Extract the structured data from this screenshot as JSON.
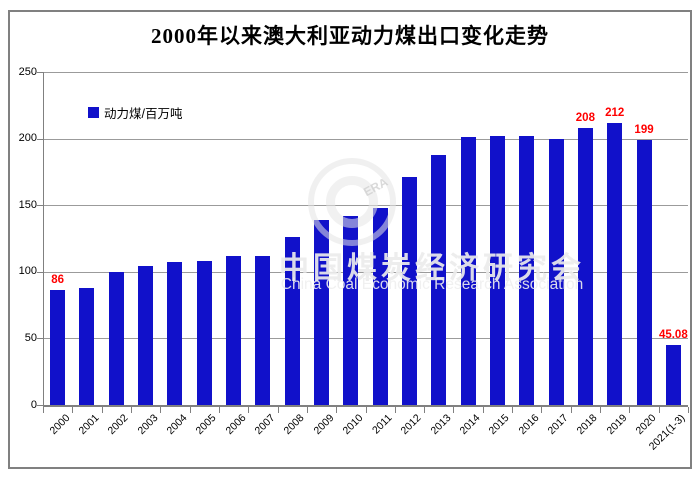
{
  "title": "2000年以来澳大利亚动力煤出口变化走势",
  "legend": {
    "label": "动力煤/百万吨"
  },
  "watermark": {
    "logo_text": "ERA",
    "cn": "中国煤炭经济研究会",
    "en": "China Coal Economic Research Association"
  },
  "colors": {
    "bar": "#1111ca",
    "grid": "#9b9b9b",
    "axis": "#808080",
    "frame": "#808080",
    "data_label": "#ff0000",
    "tick_text": "#000000",
    "background": "#ffffff"
  },
  "chart_data": {
    "type": "bar",
    "title": "2000年以来澳大利亚动力煤出口变化走势",
    "series_name": "动力煤/百万吨",
    "categories": [
      "2000",
      "2001",
      "2002",
      "2003",
      "2004",
      "2005",
      "2006",
      "2007",
      "2008",
      "2009",
      "2010",
      "2011",
      "2012",
      "2013",
      "2014",
      "2015",
      "2016",
      "2017",
      "2018",
      "2019",
      "2020",
      "2021(1-3)"
    ],
    "values": [
      86,
      88,
      100,
      104,
      107,
      108,
      112,
      112,
      126,
      139,
      142,
      148,
      171,
      188,
      201,
      202,
      202,
      200,
      208,
      212,
      199,
      45.08
    ],
    "shown_labels": [
      {
        "index": 0,
        "text": "86"
      },
      {
        "index": 18,
        "text": "208"
      },
      {
        "index": 19,
        "text": "212"
      },
      {
        "index": 20,
        "text": "199"
      },
      {
        "index": 21,
        "text": "45.08"
      }
    ],
    "ylim": [
      0,
      250
    ],
    "yticks": [
      0,
      50,
      100,
      150,
      200,
      250
    ],
    "xlabel": "",
    "ylabel": "",
    "grid": true,
    "legend_position": "top-left-inside"
  }
}
